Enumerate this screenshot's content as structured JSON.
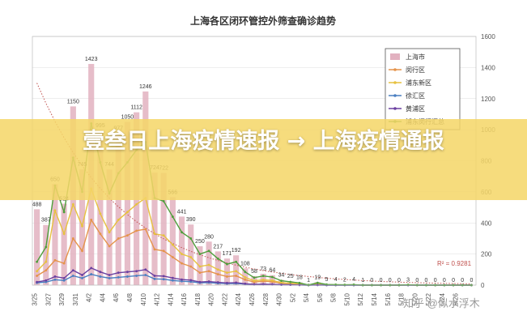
{
  "banner": {
    "headline": "壹叁日上海疫情速报 → 上海疫情通报"
  },
  "watermark": {
    "text": "知乎 @似水浮木"
  },
  "chart_data": {
    "type": "bar",
    "title": "上海各区闭环管控外筛查确诊趋势",
    "xlabel": "",
    "ylabel": "",
    "xtick_labels": [
      "3/25",
      "3/27",
      "3/29",
      "3/31",
      "4/2",
      "4/4",
      "4/6",
      "4/8",
      "4/10",
      "4/12",
      "4/14",
      "4/16",
      "4/18",
      "4/20",
      "4/22",
      "4/24",
      "4/26",
      "4/28",
      "4/30",
      "5/2",
      "5/4",
      "5/6",
      "5/8",
      "5/10",
      "5/12",
      "5/14",
      "5/16",
      "5/18",
      "5/20",
      "5/22",
      "5/24",
      "5/26"
    ],
    "ylim_right": [
      0,
      1600
    ],
    "yticks_right": [
      "0",
      "200",
      "400",
      "600",
      "800",
      "1000",
      "1200",
      "1400",
      "1600"
    ],
    "grid": true,
    "legend_position": "top-right",
    "legend": [
      "上海市",
      "闵行区",
      "浦东新区",
      "徐汇区",
      "黄浦区",
      "浦东闵行汇总"
    ],
    "series_colors": [
      "#e2b1c0",
      "#e5934a",
      "#e7c13f",
      "#4a7fc1",
      "#6a3fa0",
      "#4e9e3b"
    ],
    "trend_color": "#c0504d",
    "annotation": "R² = 0.9281",
    "value_labels": [
      "488",
      "387",
      "650",
      "524",
      "1150",
      "745",
      "1423",
      "995",
      "744",
      "977",
      "1050",
      "1112",
      "1246",
      "724",
      "722",
      "566",
      "441",
      "390",
      "250",
      "280",
      "217",
      "171",
      "192",
      "108",
      "58",
      "73",
      "64",
      "34",
      "25",
      "18",
      "1",
      "19",
      "5",
      "4",
      "2",
      "4",
      "1",
      "0",
      "0",
      "0",
      "0",
      "3",
      "0",
      "0",
      "0",
      "0",
      "0",
      "0",
      "0"
    ],
    "series": [
      {
        "name": "上海市",
        "values": [
          488,
          387,
          650,
          524,
          1150,
          745,
          1423,
          995,
          744,
          977,
          1050,
          1112,
          1246,
          724,
          722,
          566,
          441,
          390,
          250,
          280,
          217,
          171,
          192,
          108,
          58,
          73,
          64,
          34,
          25,
          18,
          1,
          19,
          5,
          4,
          2,
          4,
          1,
          0,
          0,
          0,
          0,
          3,
          0,
          0,
          0,
          0,
          0,
          0,
          0
        ]
      },
      {
        "name": "闵行区",
        "values": [
          60,
          95,
          160,
          140,
          300,
          220,
          420,
          330,
          250,
          300,
          320,
          350,
          360,
          230,
          220,
          180,
          140,
          120,
          80,
          90,
          70,
          55,
          60,
          35,
          20,
          25,
          22,
          12,
          9,
          6,
          1,
          6,
          2,
          1,
          1,
          1,
          0,
          0,
          0,
          0,
          0,
          1,
          0,
          0,
          0,
          0,
          0,
          0,
          0
        ]
      },
      {
        "name": "浦东新区",
        "values": [
          90,
          150,
          480,
          330,
          520,
          380,
          620,
          460,
          340,
          420,
          470,
          520,
          560,
          330,
          320,
          260,
          200,
          180,
          120,
          130,
          100,
          80,
          90,
          50,
          28,
          34,
          30,
          16,
          12,
          8,
          0,
          9,
          2,
          2,
          1,
          2,
          0,
          0,
          0,
          0,
          0,
          1,
          0,
          0,
          0,
          0,
          0,
          0,
          0
        ]
      },
      {
        "name": "徐汇区",
        "values": [
          15,
          20,
          35,
          30,
          60,
          45,
          70,
          55,
          45,
          50,
          55,
          60,
          65,
          40,
          38,
          30,
          25,
          22,
          15,
          16,
          12,
          10,
          11,
          7,
          4,
          5,
          4,
          2,
          2,
          1,
          0,
          1,
          0,
          0,
          0,
          0,
          0,
          0,
          0,
          0,
          0,
          0,
          0,
          0,
          0,
          0,
          0,
          0,
          0
        ]
      },
      {
        "name": "黄浦区",
        "values": [
          20,
          30,
          55,
          45,
          95,
          65,
          110,
          85,
          65,
          80,
          85,
          90,
          100,
          60,
          58,
          46,
          36,
          32,
          20,
          23,
          18,
          14,
          16,
          9,
          5,
          6,
          5,
          3,
          2,
          1,
          0,
          1,
          0,
          0,
          0,
          0,
          0,
          0,
          0,
          0,
          0,
          0,
          0,
          0,
          0,
          0,
          0,
          0,
          0
        ]
      },
      {
        "name": "浦东闵行汇总",
        "values": [
          150,
          245,
          640,
          470,
          820,
          600,
          1040,
          790,
          590,
          720,
          790,
          870,
          920,
          560,
          540,
          440,
          340,
          300,
          200,
          220,
          170,
          135,
          150,
          85,
          48,
          59,
          52,
          28,
          21,
          14,
          1,
          15,
          4,
          3,
          2,
          3,
          0,
          0,
          0,
          0,
          0,
          2,
          0,
          0,
          0,
          0,
          0,
          0,
          0
        ]
      }
    ]
  }
}
